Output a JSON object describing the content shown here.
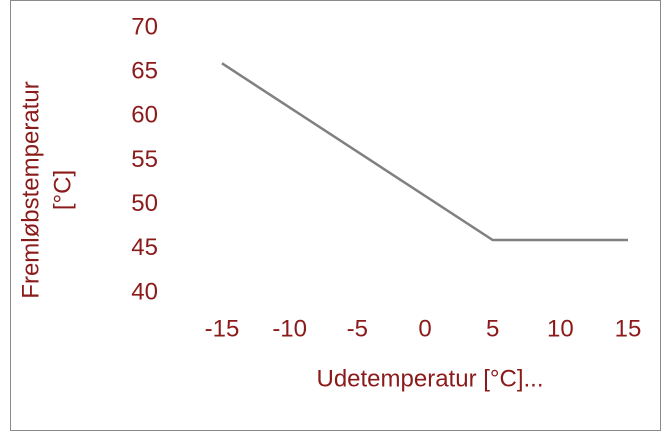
{
  "chart_data": {
    "type": "line",
    "x_label": "Udetemperatur [°C]...",
    "y_label": [
      "Fremløbstemperatur",
      "[°C]"
    ],
    "x": [
      -15,
      5,
      15
    ],
    "values": [
      66,
      46,
      46
    ],
    "color": "#808080",
    "xlim": [
      -15,
      15
    ],
    "xticks": [
      -15,
      -10,
      -5,
      0,
      5,
      10,
      15
    ],
    "ylim": [
      40,
      70
    ],
    "yticks": [
      40,
      45,
      50,
      55,
      60,
      65,
      70
    ],
    "grid": false
  }
}
